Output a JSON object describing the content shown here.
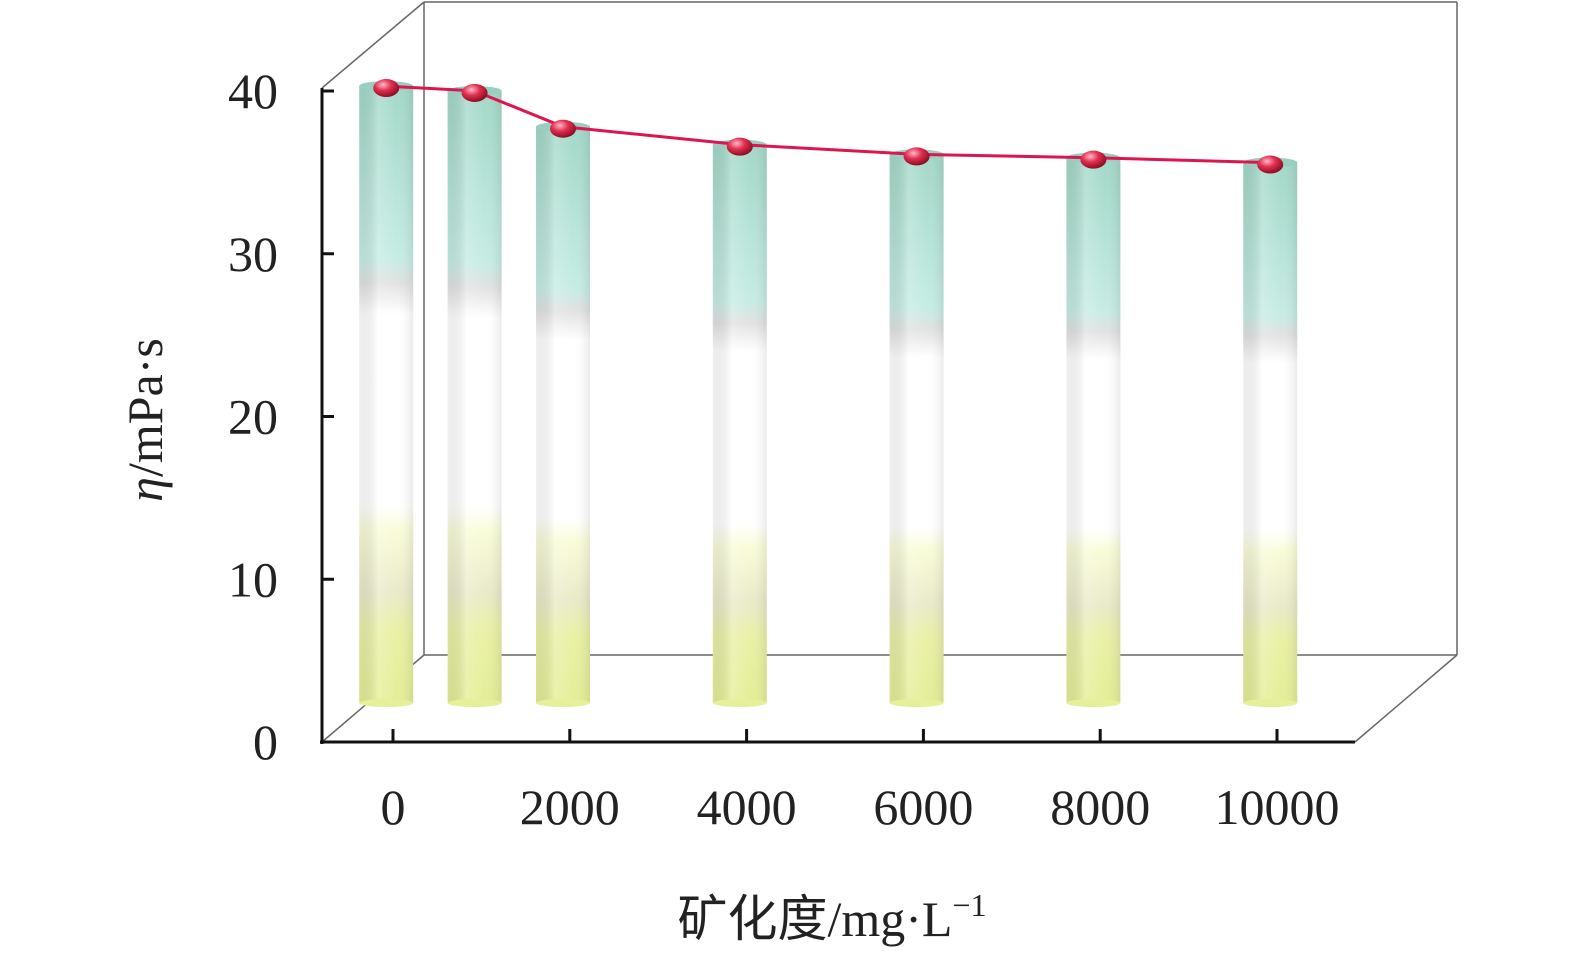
{
  "chart_data": {
    "type": "bar",
    "style": "3d-cylinder bars with overlaid line and sphere markers",
    "xlabel": {
      "prefix": "矿化度/mg·L",
      "superscript": "−1"
    },
    "ylabel": {
      "symbol": "η",
      "rest": "/mPa·s"
    },
    "ylim": [
      0,
      40
    ],
    "yticks": [
      "0",
      "10",
      "20",
      "30",
      "40"
    ],
    "xlim": [
      -500,
      10500
    ],
    "xticks": [
      0,
      2000,
      4000,
      6000,
      8000,
      10000
    ],
    "xtick_labels": [
      "0",
      "2000",
      "4000",
      "6000",
      "8000",
      "10000"
    ],
    "x": [
      500,
      1500,
      2500,
      4500,
      6500,
      8500,
      10500
    ],
    "values": [
      37.6,
      37.3,
      35.1,
      34.0,
      33.4,
      33.2,
      32.9
    ],
    "grid": false,
    "colors": {
      "bar_top": "#a8ddd0",
      "bar_mid": "#ffffff",
      "bar_bottom": "#e6ef9a",
      "line": "#dd1550",
      "marker": "#c8102e",
      "axis": "#111111",
      "box": "#666666"
    }
  }
}
